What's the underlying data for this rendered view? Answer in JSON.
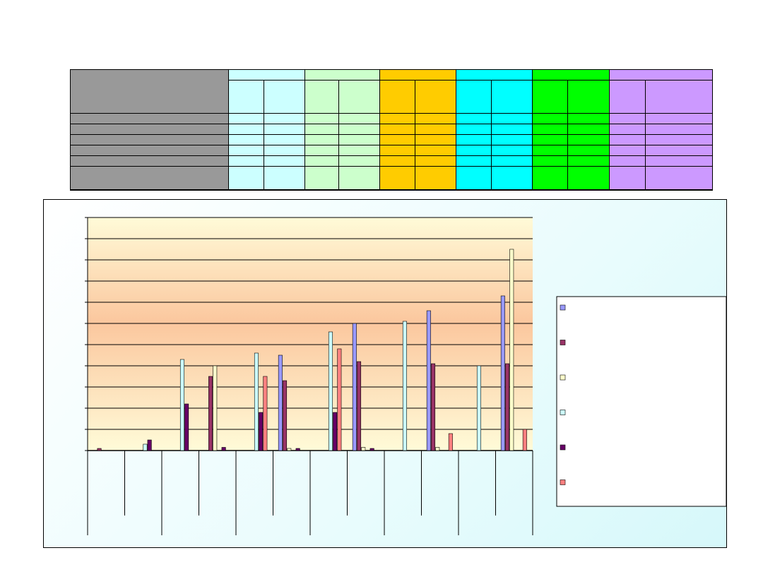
{
  "table": {
    "group_colors": [
      "#ccffff",
      "#ccffcc",
      "#ffcc00",
      "#00ffff",
      "#00ff00",
      "#cc99ff"
    ],
    "label_color": "#999999"
  },
  "chart_data": {
    "type": "bar",
    "title": "",
    "xlabel": "",
    "ylabel": "",
    "ylim": [
      0,
      11
    ],
    "grid": true,
    "legend_position": "right",
    "background": "gradient light yellow to orange",
    "categories": [
      "",
      "",
      "",
      "",
      "",
      "",
      "",
      "",
      "",
      "",
      "",
      ""
    ],
    "series": [
      {
        "color": "#9999ff",
        "values": [
          0,
          0,
          0,
          0,
          0,
          4.5,
          0,
          6.0,
          0,
          6.6,
          0,
          7.3
        ]
      },
      {
        "color": "#993366",
        "values": [
          0.1,
          0,
          0,
          3.5,
          0,
          3.3,
          0,
          4.2,
          0,
          4.1,
          0,
          4.1
        ]
      },
      {
        "color": "#ffffcc",
        "values": [
          0,
          0,
          0,
          4.0,
          0,
          0.1,
          0,
          0.15,
          0,
          0.15,
          0,
          9.5
        ]
      },
      {
        "color": "#ccffff",
        "values": [
          0,
          0.3,
          4.3,
          0,
          4.6,
          0,
          5.6,
          0,
          6.1,
          0,
          4.0,
          0
        ]
      },
      {
        "color": "#660066",
        "values": [
          0,
          0.5,
          2.2,
          0.15,
          1.8,
          0.1,
          1.8,
          0.1,
          0,
          0,
          0,
          0
        ]
      },
      {
        "color": "#ff8080",
        "values": [
          0,
          0,
          0,
          0,
          3.5,
          0,
          4.8,
          0,
          0,
          0.8,
          0,
          1.0
        ]
      }
    ]
  }
}
